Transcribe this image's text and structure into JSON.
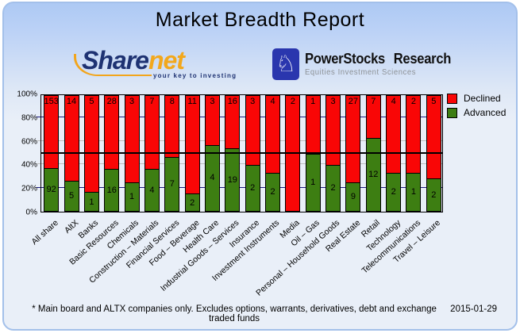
{
  "header": {
    "title": "Market Breadth Report"
  },
  "logos": {
    "sharenet": {
      "name_part1": "Share",
      "name_part2": "net",
      "tagline": "your key to investing",
      "brand_navy": "#1E3272",
      "brand_orange": "#F2A81D"
    },
    "powerstocks": {
      "title": "PowerStocks Research",
      "subtitle": "Equities Investment Sciences",
      "icon": "knight-chess-icon",
      "icon_glyph": "♘",
      "box_color": "#2A36AE"
    }
  },
  "chart_data": {
    "type": "bar",
    "stacked": true,
    "stacking": "percent",
    "categories": [
      "All share",
      "AltX",
      "Banks",
      "Basic Resources",
      "Chemicals",
      "Construction – Materials",
      "Financial Services",
      "Food – Beverage",
      "Health Care",
      "Industrial Goods – Services",
      "Insurance",
      "Investment Instruments",
      "Media",
      "Oil – Gas",
      "Personal – Household Goods",
      "Real Estate",
      "Retail",
      "Technology",
      "Telecommunications",
      "Travel – Leisure"
    ],
    "series": [
      {
        "name": "Declined",
        "color": "#F90606",
        "values": [
          153,
          14,
          5,
          28,
          3,
          7,
          8,
          11,
          3,
          16,
          3,
          4,
          2,
          1,
          3,
          27,
          7,
          4,
          2,
          5
        ]
      },
      {
        "name": "Advanced",
        "color": "#3D7E12",
        "values": [
          92,
          5,
          1,
          16,
          1,
          4,
          7,
          2,
          4,
          19,
          2,
          2,
          0,
          1,
          2,
          9,
          12,
          2,
          1,
          2
        ]
      }
    ],
    "ylim": [
      0,
      100
    ],
    "y_ticks": [
      "100%",
      "80%",
      "60%",
      "40%",
      "20%",
      "0%"
    ],
    "legend_position": "right",
    "grid": {
      "navy_lines_pct": [
        20,
        80
      ],
      "gray_lines_pct": [
        40,
        60
      ],
      "navy_color": "#1A1A80",
      "gray_color": "#BEBEBE",
      "reference_line_pct": 50,
      "reference_color": "#000000"
    }
  },
  "footer": {
    "note": "* Main board and ALTX companies only. Excludes options, warrants, derivatives, debt and exchange traded funds",
    "date": "2015-01-29"
  }
}
